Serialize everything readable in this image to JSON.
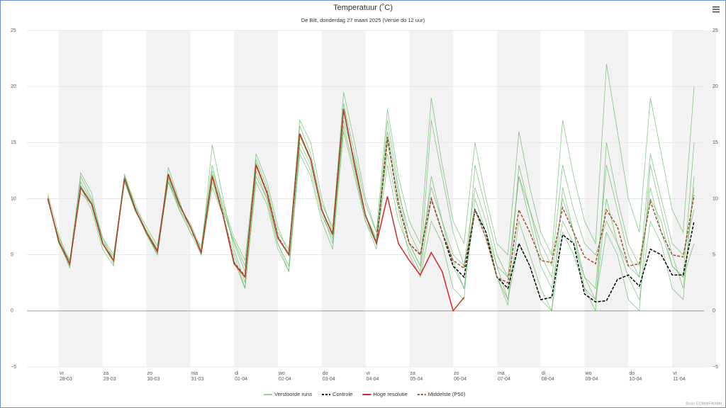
{
  "chart_data": {
    "type": "line",
    "title": "Temperatuur (˚C)",
    "subtitle": "De Bilt, donderdag 27 maart 2025 (Versie do 12 uur)",
    "credits": "Bron: ECMWF/KNMI",
    "categories": [
      null,
      [
        "vr",
        "28-03"
      ],
      null,
      null,
      null,
      [
        "za",
        "29-03"
      ],
      null,
      null,
      null,
      [
        "zo",
        "30-03"
      ],
      null,
      null,
      null,
      [
        "ma",
        "31-03"
      ],
      null,
      null,
      null,
      [
        "di",
        "01-04"
      ],
      null,
      null,
      null,
      [
        "wo",
        "02-04"
      ],
      null,
      null,
      null,
      [
        "do",
        "03-04"
      ],
      null,
      null,
      null,
      [
        "vr",
        "04-04"
      ],
      null,
      null,
      null,
      [
        "za",
        "05-04"
      ],
      null,
      null,
      null,
      [
        "zo",
        "06-04"
      ],
      null,
      null,
      null,
      [
        "ma",
        "07-04"
      ],
      null,
      null,
      null,
      [
        "di",
        "08-04"
      ],
      null,
      null,
      null,
      [
        "wo",
        "09-04"
      ],
      null,
      null,
      null,
      [
        "do",
        "10-04"
      ],
      null,
      null,
      null,
      [
        "vr",
        "11-04"
      ],
      null,
      null
    ],
    "ylim": [
      -5,
      25
    ],
    "yticks": [
      {
        "value": -5,
        "label": "−5"
      },
      0,
      5,
      10,
      15,
      20,
      25
    ],
    "grid": true,
    "ensemble": {
      "name": "Verstoorde runs",
      "color": "#5cb85c",
      "members": [
        [
          10.2,
          6,
          4,
          11.5,
          9.8,
          6.2,
          4.8,
          11.5,
          8.8,
          7.2,
          5.5,
          11.8,
          9.2,
          7.8,
          5.5,
          12.5,
          9.5,
          6.5,
          4.5,
          13.5,
          11,
          7,
          5.5,
          16.5,
          14,
          9.5,
          7.5,
          18.5,
          14,
          9.5,
          7,
          18,
          12,
          8,
          6,
          19,
          13,
          8,
          6,
          15,
          10,
          6,
          5,
          16,
          11,
          7,
          5,
          17,
          12,
          8,
          6,
          22,
          16,
          10,
          7,
          19,
          14,
          9,
          7,
          20
        ],
        [
          9.8,
          6.5,
          4.5,
          12,
          10,
          6.5,
          5,
          12,
          9.5,
          7,
          5,
          11.5,
          9,
          7.5,
          5,
          11,
          8.5,
          5,
          2,
          12,
          10,
          6,
          4,
          14.5,
          12.5,
          8.5,
          6.5,
          16.5,
          12.5,
          8,
          6,
          17,
          11,
          6,
          4,
          12,
          8,
          4,
          2,
          10,
          7,
          3,
          1,
          8,
          5,
          2,
          0,
          7,
          5,
          2,
          1,
          10,
          6,
          3,
          1,
          8,
          6,
          2,
          1,
          12
        ],
        [
          10,
          6.3,
          3.8,
          12.3,
          10.5,
          6,
          4.2,
          12,
          9,
          6.8,
          5,
          12.8,
          9.8,
          7,
          5,
          14.8,
          10,
          5.5,
          2.5,
          14,
          11.5,
          7.5,
          5,
          17,
          15,
          10,
          7,
          19.5,
          15,
          10,
          7,
          14,
          9,
          5,
          3,
          8,
          6,
          2,
          1,
          13,
          9,
          5,
          3,
          12,
          8,
          4,
          2,
          8,
          6,
          3,
          2,
          13,
          9,
          5,
          3,
          11,
          7,
          4,
          3,
          6
        ],
        [
          10.4,
          6.8,
          4,
          11,
          9,
          5.5,
          4,
          12.2,
          9.2,
          7.5,
          5.8,
          12,
          9,
          7,
          5.8,
          13,
          9,
          6,
          3.5,
          12.5,
          10,
          6,
          3.5,
          15,
          13,
          9,
          6,
          17,
          13.5,
          8.5,
          6.5,
          16,
          10.5,
          7,
          5,
          11,
          8,
          5,
          4,
          9,
          7,
          4,
          3,
          12,
          9,
          6,
          4,
          13,
          9,
          6,
          5,
          8,
          6,
          4,
          3,
          14,
          10,
          6,
          5,
          9
        ],
        [
          10,
          6,
          4.5,
          10.5,
          9.5,
          6.5,
          4.5,
          11.5,
          9,
          7,
          5.5,
          11.5,
          9.5,
          7.5,
          5.2,
          11.5,
          8.5,
          4.5,
          2,
          11.5,
          9.5,
          5.5,
          3.5,
          14,
          12,
          8,
          5.5,
          16,
          12,
          8,
          5.5,
          15,
          10,
          6,
          4,
          17,
          12,
          7,
          4,
          11,
          8,
          4,
          1,
          6,
          4,
          1,
          0,
          11,
          7,
          3,
          1,
          7,
          5,
          1,
          0,
          13,
          9,
          5,
          2,
          11
        ],
        [
          10.1,
          6.2,
          4.2,
          11.2,
          9.6,
          6,
          4.4,
          11.8,
          9.1,
          6.9,
          5.2,
          12.1,
          9.4,
          7.6,
          5.3,
          12.2,
          9.1,
          6.2,
          4,
          13.2,
          10.6,
          6.6,
          5,
          15.6,
          13.4,
          9,
          6.8,
          17.8,
          13,
          8.6,
          6.2,
          13,
          8,
          5.5,
          3.5,
          10,
          7,
          4.5,
          2,
          9,
          6.5,
          3,
          0.5,
          13,
          9,
          5,
          3,
          10,
          7,
          2,
          0,
          15,
          10,
          6,
          4,
          10,
          8,
          4,
          3,
          15
        ]
      ]
    },
    "series": [
      {
        "name": "Controle",
        "color": "#000000",
        "dashed": true,
        "values": [
          10,
          6.2,
          4.2,
          11,
          9.5,
          6,
          4.5,
          11.8,
          9,
          7,
          5.3,
          12.2,
          9.5,
          7.5,
          5.2,
          12,
          8.6,
          4.3,
          3.1,
          13,
          10.6,
          6.6,
          5,
          15.8,
          13.5,
          9,
          6.8,
          18,
          13,
          8.5,
          6,
          15.5,
          9.5,
          6,
          5,
          10,
          7,
          4,
          3,
          9,
          7,
          3,
          2,
          6,
          4,
          1,
          1.2,
          6.8,
          6,
          1.5,
          0.8,
          0.9,
          2.8,
          3.2,
          2.2,
          5.5,
          5,
          3.2,
          3.2,
          8
        ]
      },
      {
        "name": "Hoge resolutie",
        "color": "#d62728",
        "dashed": false,
        "values": [
          10,
          6.2,
          4.2,
          11,
          9.5,
          6,
          4.5,
          11.8,
          9,
          7,
          5.3,
          12.2,
          9.5,
          7.5,
          5.2,
          12,
          8.5,
          4.2,
          3,
          13,
          10.5,
          6.5,
          5,
          15.8,
          13.5,
          9,
          6.8,
          18,
          13,
          8.5,
          6,
          10.2,
          6,
          4.5,
          3.2,
          5.2,
          3.5,
          0,
          1.2,
          null,
          null,
          null,
          null,
          null,
          null,
          null,
          null,
          null,
          null,
          null,
          null,
          null,
          null,
          null,
          null,
          null,
          null,
          null,
          null,
          null
        ]
      },
      {
        "name": "Middelste (P50)",
        "color": "#a0522d",
        "dashed": true,
        "values": [
          10,
          6.2,
          4.2,
          11,
          9.5,
          6,
          4.5,
          11.8,
          9,
          7,
          5.3,
          12.2,
          9.5,
          7.5,
          5.2,
          12,
          8.6,
          4.3,
          3.1,
          13,
          10.6,
          6.6,
          5,
          15.8,
          13.5,
          9,
          6.8,
          18,
          13,
          8.5,
          6,
          15.5,
          9.5,
          6,
          5,
          10,
          7,
          4.5,
          3.8,
          9,
          6.5,
          3,
          2.5,
          9,
          7,
          4.5,
          4.3,
          9.2,
          7,
          4.8,
          4.2,
          9,
          7.5,
          4,
          4.2,
          9.8,
          7,
          5,
          4.8,
          10.3
        ]
      }
    ]
  }
}
